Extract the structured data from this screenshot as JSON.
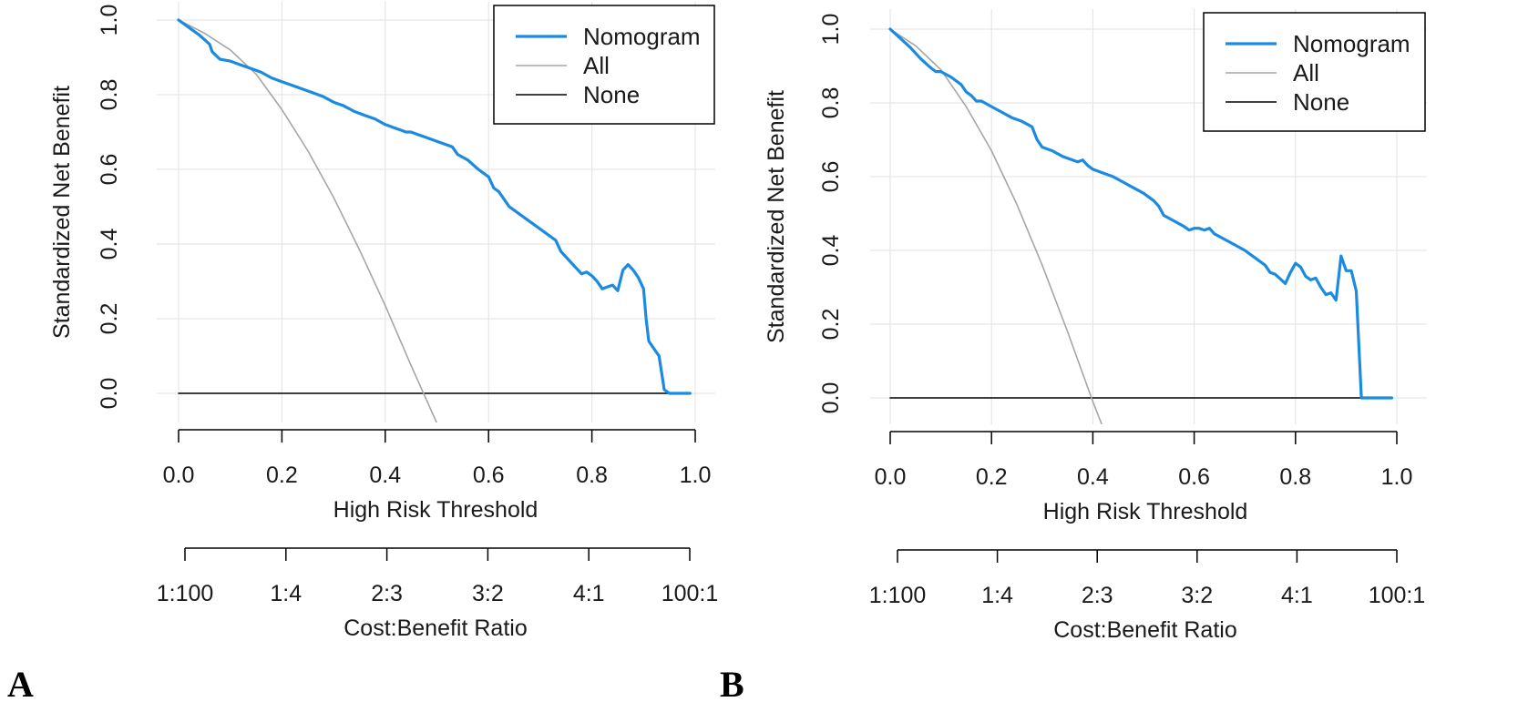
{
  "chart_data": [
    {
      "panel_label": "A",
      "type": "line",
      "xlabel": "High Risk Threshold",
      "ylabel": "Standardized Net Benefit",
      "xlim": [
        0,
        1
      ],
      "ylim": [
        -0.09,
        1.0
      ],
      "x_ticks": [
        "0.0",
        "0.2",
        "0.4",
        "0.6",
        "0.8",
        "1.0"
      ],
      "y_ticks": [
        "0.0",
        "0.2",
        "0.4",
        "0.6",
        "0.8",
        "1.0"
      ],
      "grid": true,
      "cost_benefit_label": "Cost:Benefit Ratio",
      "cost_benefit_ticks": [
        "1:100",
        "1:4",
        "2:3",
        "3:2",
        "4:1",
        "100:1"
      ],
      "legend": {
        "position": "top-right",
        "entries": [
          "Nomogram",
          "All",
          "None"
        ]
      },
      "colors": {
        "Nomogram": "#1a8be0",
        "All": "#a6a6a6",
        "None": "#000000"
      },
      "series": [
        {
          "name": "Nomogram",
          "x": [
            0.0,
            0.02,
            0.04,
            0.06,
            0.065,
            0.08,
            0.1,
            0.12,
            0.14,
            0.16,
            0.18,
            0.2,
            0.22,
            0.24,
            0.26,
            0.28,
            0.3,
            0.32,
            0.34,
            0.36,
            0.38,
            0.4,
            0.42,
            0.43,
            0.44,
            0.45,
            0.46,
            0.48,
            0.5,
            0.52,
            0.53,
            0.54,
            0.56,
            0.58,
            0.59,
            0.6,
            0.61,
            0.62,
            0.63,
            0.64,
            0.66,
            0.68,
            0.7,
            0.72,
            0.73,
            0.74,
            0.76,
            0.78,
            0.79,
            0.8,
            0.81,
            0.82,
            0.83,
            0.84,
            0.85,
            0.86,
            0.87,
            0.88,
            0.89,
            0.9,
            0.905,
            0.91,
            0.92,
            0.93,
            0.94,
            0.95,
            0.96,
            0.97,
            0.98,
            0.99
          ],
          "values": [
            1.0,
            0.98,
            0.96,
            0.935,
            0.915,
            0.895,
            0.89,
            0.88,
            0.87,
            0.86,
            0.845,
            0.835,
            0.825,
            0.815,
            0.805,
            0.795,
            0.78,
            0.77,
            0.755,
            0.745,
            0.735,
            0.72,
            0.71,
            0.705,
            0.7,
            0.7,
            0.695,
            0.685,
            0.675,
            0.665,
            0.66,
            0.64,
            0.625,
            0.6,
            0.59,
            0.58,
            0.55,
            0.54,
            0.52,
            0.5,
            0.48,
            0.46,
            0.44,
            0.42,
            0.41,
            0.38,
            0.35,
            0.32,
            0.325,
            0.315,
            0.3,
            0.28,
            0.285,
            0.29,
            0.275,
            0.33,
            0.345,
            0.33,
            0.31,
            0.28,
            0.2,
            0.14,
            0.12,
            0.1,
            0.01,
            0.0,
            0.0,
            0.0,
            0.0,
            0.0
          ]
        },
        {
          "name": "All",
          "x": [
            0.0,
            0.05,
            0.1,
            0.15,
            0.2,
            0.25,
            0.3,
            0.35,
            0.4,
            0.45,
            0.5,
            0.51
          ],
          "values": [
            1.0,
            0.965,
            0.92,
            0.855,
            0.76,
            0.65,
            0.525,
            0.385,
            0.235,
            0.075,
            -0.08,
            -0.09
          ]
        },
        {
          "name": "None",
          "x": [
            0.0,
            0.99
          ],
          "values": [
            0.0,
            0.0
          ]
        }
      ]
    },
    {
      "panel_label": "B",
      "type": "line",
      "xlabel": "High Risk Threshold",
      "ylabel": "Standardized Net Benefit",
      "xlim": [
        0,
        1
      ],
      "ylim": [
        -0.09,
        1.0
      ],
      "x_ticks": [
        "0.0",
        "0.2",
        "0.4",
        "0.6",
        "0.8",
        "1.0"
      ],
      "y_ticks": [
        "0.0",
        "0.2",
        "0.4",
        "0.6",
        "0.8",
        "1.0"
      ],
      "grid": true,
      "cost_benefit_label": "Cost:Benefit Ratio",
      "cost_benefit_ticks": [
        "1:100",
        "1:4",
        "2:3",
        "3:2",
        "4:1",
        "100:1"
      ],
      "legend": {
        "position": "top-right",
        "entries": [
          "Nomogram",
          "All",
          "None"
        ]
      },
      "colors": {
        "Nomogram": "#1a8be0",
        "All": "#a6a6a6",
        "None": "#000000"
      },
      "series": [
        {
          "name": "Nomogram",
          "x": [
            0.0,
            0.02,
            0.04,
            0.06,
            0.08,
            0.09,
            0.1,
            0.12,
            0.14,
            0.15,
            0.16,
            0.17,
            0.18,
            0.2,
            0.22,
            0.24,
            0.26,
            0.28,
            0.29,
            0.3,
            0.32,
            0.34,
            0.36,
            0.37,
            0.38,
            0.39,
            0.4,
            0.42,
            0.44,
            0.46,
            0.48,
            0.5,
            0.52,
            0.53,
            0.54,
            0.56,
            0.58,
            0.59,
            0.6,
            0.61,
            0.62,
            0.63,
            0.64,
            0.66,
            0.68,
            0.7,
            0.72,
            0.74,
            0.75,
            0.76,
            0.78,
            0.79,
            0.8,
            0.81,
            0.82,
            0.83,
            0.84,
            0.85,
            0.86,
            0.87,
            0.88,
            0.89,
            0.9,
            0.91,
            0.92,
            0.93,
            0.935,
            0.94,
            0.95,
            0.96,
            0.97,
            0.98,
            0.99
          ],
          "values": [
            1.0,
            0.975,
            0.95,
            0.92,
            0.895,
            0.885,
            0.885,
            0.87,
            0.85,
            0.83,
            0.82,
            0.805,
            0.805,
            0.79,
            0.775,
            0.76,
            0.75,
            0.735,
            0.7,
            0.68,
            0.67,
            0.655,
            0.645,
            0.64,
            0.645,
            0.63,
            0.62,
            0.61,
            0.6,
            0.585,
            0.57,
            0.555,
            0.535,
            0.52,
            0.495,
            0.48,
            0.465,
            0.455,
            0.46,
            0.46,
            0.455,
            0.46,
            0.445,
            0.43,
            0.415,
            0.4,
            0.38,
            0.36,
            0.34,
            0.335,
            0.31,
            0.34,
            0.365,
            0.355,
            0.33,
            0.32,
            0.325,
            0.3,
            0.28,
            0.285,
            0.265,
            0.385,
            0.345,
            0.345,
            0.29,
            0.0,
            0.0,
            0.0,
            0.0,
            0.0,
            0.0,
            0.0,
            0.0
          ]
        },
        {
          "name": "All",
          "x": [
            0.0,
            0.05,
            0.1,
            0.15,
            0.2,
            0.25,
            0.3,
            0.35,
            0.4,
            0.42,
            0.44
          ],
          "values": [
            1.0,
            0.955,
            0.89,
            0.79,
            0.67,
            0.525,
            0.36,
            0.18,
            -0.01,
            -0.08,
            -0.09
          ]
        },
        {
          "name": "None",
          "x": [
            0.0,
            0.99
          ],
          "values": [
            0.0,
            0.0
          ]
        }
      ]
    }
  ]
}
